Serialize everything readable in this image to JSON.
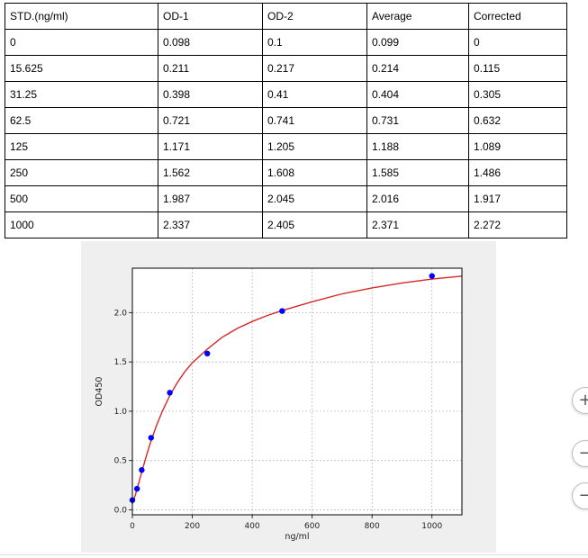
{
  "table": {
    "headers": [
      "STD.(ng/ml)",
      "OD-1",
      "OD-2",
      "Average",
      "Corrected"
    ],
    "rows": [
      [
        "0",
        "0.098",
        "0.1",
        "0.099",
        "0"
      ],
      [
        "15.625",
        "0.211",
        "0.217",
        "0.214",
        "0.115"
      ],
      [
        "31.25",
        "0.398",
        "0.41",
        "0.404",
        "0.305"
      ],
      [
        "62.5",
        "0.721",
        "0.741",
        "0.731",
        "0.632"
      ],
      [
        "125",
        "1.171",
        "1.205",
        "1.188",
        "1.089"
      ],
      [
        "250",
        "1.562",
        "1.608",
        "1.585",
        "1.486"
      ],
      [
        "500",
        "1.987",
        "2.045",
        "2.016",
        "1.917"
      ],
      [
        "1000",
        "2.337",
        "2.405",
        "2.371",
        "2.272"
      ]
    ]
  },
  "chart_data": {
    "type": "scatter",
    "title": "",
    "xlabel": "ng/ml",
    "ylabel": "OD450",
    "xlim": [
      0,
      1100
    ],
    "ylim": [
      -0.05,
      2.45
    ],
    "xticks": [
      0,
      200,
      400,
      600,
      800,
      1000
    ],
    "xtick_labels": [
      "0",
      "200",
      "400",
      "600",
      "800",
      "1000"
    ],
    "yticks": [
      0.0,
      0.5,
      1.0,
      1.5,
      2.0
    ],
    "ytick_labels": [
      "0.0",
      "0.5",
      "1.0",
      "1.5",
      "2.0"
    ],
    "grid": true,
    "series": [
      {
        "kind": "points",
        "color": "#0000ff",
        "x": [
          0,
          15.625,
          31.25,
          62.5,
          125,
          250,
          500,
          1000
        ],
        "y": [
          0.099,
          0.214,
          0.404,
          0.731,
          1.188,
          1.585,
          2.016,
          2.371
        ]
      },
      {
        "kind": "fit-curve",
        "color": "#d62728",
        "x": [
          0,
          10,
          20,
          30,
          45,
          60,
          80,
          100,
          125,
          150,
          175,
          200,
          250,
          300,
          350,
          400,
          450,
          500,
          600,
          700,
          800,
          900,
          1000,
          1100
        ],
        "y": [
          0.06,
          0.15,
          0.26,
          0.37,
          0.53,
          0.68,
          0.85,
          1.0,
          1.16,
          1.29,
          1.4,
          1.49,
          1.63,
          1.75,
          1.84,
          1.91,
          1.97,
          2.02,
          2.11,
          2.19,
          2.25,
          2.3,
          2.34,
          2.37
        ]
      }
    ]
  },
  "colors": {
    "figure_bg": "#efefef",
    "axes_bg": "#ffffff",
    "grid": "#b0b0b0",
    "points": "#0000ff",
    "curve": "#d62728"
  },
  "controls": {
    "zoom_in_label": "+",
    "zoom_out_label": "−",
    "reset_label": "−"
  }
}
